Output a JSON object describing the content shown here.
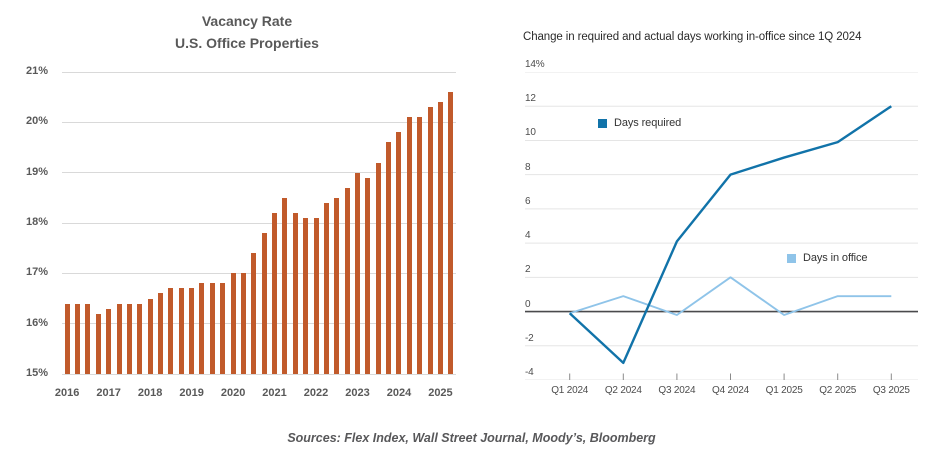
{
  "footer": {
    "sources": "Sources: Flex Index, Wall Street Journal, Moody’s, Bloomberg"
  },
  "colors": {
    "bar_orange": "#c15a2b",
    "days_required_blue": "#1173a9",
    "days_in_office_blue": "#8fc4e9",
    "left_gridline": "#d9d9d9",
    "right_gridline": "#e5e5e5",
    "zero_axis": "#4a4a4c",
    "excel_text": "#595959"
  },
  "chart_data": [
    {
      "type": "bar",
      "title": "Vacancy Rate U.S. Office Properties",
      "title_lines": [
        "Vacancy Rate",
        "U.S. Office Properties"
      ],
      "categories": [
        "Q1 2016",
        "Q2 2016",
        "Q3 2016",
        "Q4 2016",
        "Q1 2017",
        "Q2 2017",
        "Q3 2017",
        "Q4 2017",
        "Q1 2018",
        "Q2 2018",
        "Q3 2018",
        "Q4 2018",
        "Q1 2019",
        "Q2 2019",
        "Q3 2019",
        "Q4 2019",
        "Q1 2020",
        "Q2 2020",
        "Q3 2020",
        "Q4 2020",
        "Q1 2021",
        "Q2 2021",
        "Q3 2021",
        "Q4 2021",
        "Q1 2022",
        "Q2 2022",
        "Q3 2022",
        "Q4 2022",
        "Q1 2023",
        "Q2 2023",
        "Q3 2023",
        "Q4 2023",
        "Q1 2024",
        "Q2 2024",
        "Q3 2024",
        "Q4 2024",
        "Q1 2025",
        "Q2 2025"
      ],
      "values": [
        16.4,
        16.4,
        16.4,
        16.2,
        16.3,
        16.4,
        16.4,
        16.4,
        16.5,
        16.6,
        16.7,
        16.7,
        16.7,
        16.8,
        16.8,
        16.8,
        17.0,
        17.0,
        17.4,
        17.8,
        18.2,
        18.5,
        18.2,
        18.1,
        18.1,
        18.4,
        18.5,
        18.7,
        19.0,
        18.9,
        19.2,
        19.6,
        19.8,
        20.1,
        20.1,
        20.3,
        20.4,
        20.6
      ],
      "xlabel": "",
      "ylabel": "",
      "ylim": [
        15,
        21
      ],
      "yticks": [
        "21%",
        "20%",
        "19%",
        "18%",
        "17%",
        "16%",
        "15%"
      ],
      "year_labels": [
        "2016",
        "2017",
        "2018",
        "2019",
        "2020",
        "2021",
        "2022",
        "2023",
        "2024",
        "2025"
      ],
      "grid": "horizontal",
      "bar_color": "#c15a2b"
    },
    {
      "type": "line",
      "title": "Change in required and actual days working in-office since 1Q 2024",
      "x": [
        "Q1 2024",
        "Q2 2024",
        "Q3 2024",
        "Q4 2024",
        "Q1 2025",
        "Q2 2025",
        "Q3 2025"
      ],
      "series": [
        {
          "name": "Days required",
          "color": "#1173a9",
          "values": [
            -0.1,
            -3,
            4.1,
            8,
            9,
            9.9,
            12
          ]
        },
        {
          "name": "Days in office",
          "color": "#8fc4e9",
          "values": [
            -0.1,
            0.9,
            -0.2,
            2,
            -0.2,
            0.9,
            0.9
          ]
        }
      ],
      "ylim": [
        -4,
        14
      ],
      "yticks": [
        "14%",
        "12",
        "10",
        "8",
        "6",
        "4",
        "2",
        "0",
        "-2",
        "-4"
      ],
      "ytick_values": [
        14,
        12,
        10,
        8,
        6,
        4,
        2,
        0,
        -2,
        -4
      ],
      "grid": "horizontal",
      "zero_line": true,
      "legend_position": "inside-plot"
    }
  ]
}
